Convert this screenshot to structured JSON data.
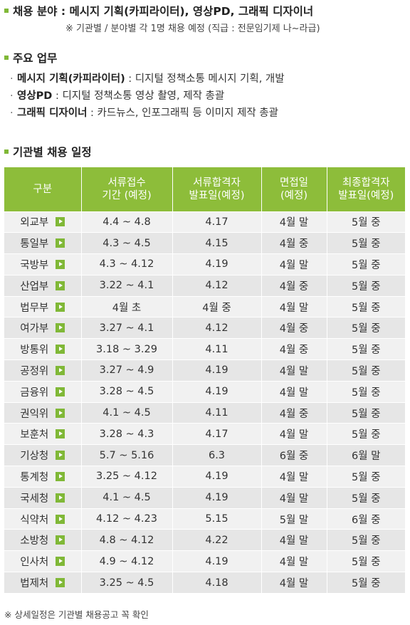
{
  "field": {
    "label": "채용 분야 :",
    "value": "메시지 기획(카피라이터), 영상PD, 그래픽 디자이너",
    "note": "※ 기관별 / 분야별 각 1명 채용 예정 (직급 : 전문임기제 나~라급)"
  },
  "duties": {
    "title": "주요 업무",
    "items": [
      {
        "role": "메시지 기획(카피라이터)",
        "desc": " : 디지털 정책소통 메시지 기획, 개발"
      },
      {
        "role": "영상PD",
        "desc": " : 디지털 정책소통 영상 촬영, 제작 총괄"
      },
      {
        "role": "그래픽 디자이너",
        "desc": " : 카드뉴스, 인포그래픽 등 이미지 제작 총괄"
      }
    ]
  },
  "schedule": {
    "title": "기관별 채용 일정",
    "headers": {
      "col1": "구분",
      "col2a": "서류접수",
      "col2b": "기간 (예정)",
      "col3a": "서류합격자",
      "col3b": "발표일(예정)",
      "col4a": "면접일",
      "col4b": "(예정)",
      "col5a": "최종합격자",
      "col5b": "발표일(예정)"
    },
    "rows": [
      {
        "org": "외교부",
        "apply": "4.4 ~ 4.8",
        "doc": "4.17",
        "interview": "4월 말",
        "final": "5월 중"
      },
      {
        "org": "통일부",
        "apply": "4.3 ~ 4.5",
        "doc": "4.15",
        "interview": "4월 중",
        "final": "5월 중"
      },
      {
        "org": "국방부",
        "apply": "4.3 ~ 4.12",
        "doc": "4.19",
        "interview": "4월 말",
        "final": "5월 중"
      },
      {
        "org": "산업부",
        "apply": "3.22 ~ 4.1",
        "doc": "4.12",
        "interview": "4월 중",
        "final": "5월 중"
      },
      {
        "org": "법무부",
        "apply": "4월 초",
        "doc": "4월 중",
        "interview": "4월 말",
        "final": "5월 중"
      },
      {
        "org": "여가부",
        "apply": "3.27 ~ 4.1",
        "doc": "4.12",
        "interview": "4월 중",
        "final": "5월 중"
      },
      {
        "org": "방통위",
        "apply": "3.18 ~ 3.29",
        "doc": "4.11",
        "interview": "4월 중",
        "final": "5월 중"
      },
      {
        "org": "공정위",
        "apply": "3.27 ~ 4.9",
        "doc": "4.19",
        "interview": "4월 말",
        "final": "5월 중"
      },
      {
        "org": "금융위",
        "apply": "3.28 ~ 4.5",
        "doc": "4.19",
        "interview": "4월 말",
        "final": "5월 중"
      },
      {
        "org": "권익위",
        "apply": "4.1 ~ 4.5",
        "doc": "4.11",
        "interview": "4월 중",
        "final": "5월 중"
      },
      {
        "org": "보훈처",
        "apply": "3.28 ~ 4.3",
        "doc": "4.17",
        "interview": "4월 말",
        "final": "5월 중"
      },
      {
        "org": "기상청",
        "apply": "5.7 ~ 5.16",
        "doc": "6.3",
        "interview": "6월 중",
        "final": "6월 말"
      },
      {
        "org": "통계청",
        "apply": "3.25 ~ 4.12",
        "doc": "4.19",
        "interview": "4월 말",
        "final": "5월 중"
      },
      {
        "org": "국세청",
        "apply": "4.1 ~ 4.5",
        "doc": "4.19",
        "interview": "4월 말",
        "final": "5월 중"
      },
      {
        "org": "식약처",
        "apply": "4.12 ~ 4.23",
        "doc": "5.15",
        "interview": "5월 말",
        "final": "6월 중"
      },
      {
        "org": "소방청",
        "apply": "4.8 ~ 4.12",
        "doc": "4.22",
        "interview": "4월 말",
        "final": "5월 중"
      },
      {
        "org": "인사처",
        "apply": "4.9 ~ 4.12",
        "doc": "4.19",
        "interview": "4월 말",
        "final": "5월 중"
      },
      {
        "org": "법제처",
        "apply": "3.25 ~ 4.5",
        "doc": "4.18",
        "interview": "4월 말",
        "final": "5월 중"
      }
    ]
  },
  "footnote": "※ 상세일정은 기관별 채용공고 꼭 확인",
  "colors": {
    "accent": "#8dbd3a",
    "row_light": "#f1f1f1",
    "row_dark": "#e6e6e6"
  }
}
